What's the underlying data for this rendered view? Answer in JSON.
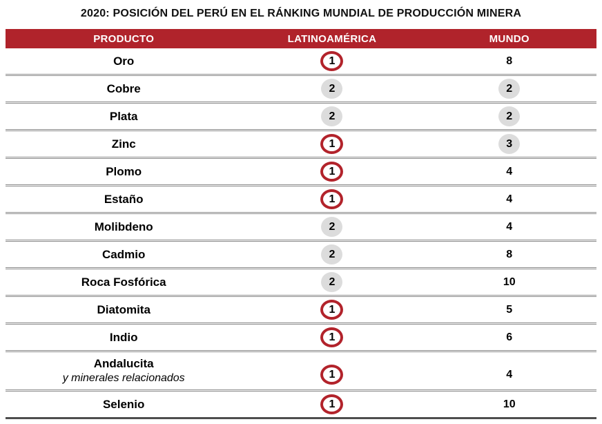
{
  "title": "2020: POSICIÓN DEL PERÚ EN EL RÁNKING MUNDIAL DE PRODUCCIÓN MINERA",
  "colors": {
    "header_bg": "#B0232B",
    "ring_red": "#B2232B",
    "circle_gray": "#DCDCDC",
    "separator_gray": "#8A8A8A",
    "bottom_border": "#4D4D4D"
  },
  "chart_data": {
    "type": "table",
    "title": "2020: POSICIÓN DEL PERÚ EN EL RÁNKING MUNDIAL DE PRODUCCIÓN MINERA",
    "columns": {
      "producto": "PRODUCTO",
      "latinoamerica": "LATINOAMÉRICA",
      "mundo": "MUNDO"
    },
    "badge_legend": {
      "ring": "red circled number (1st place)",
      "circle": "gray filled circle",
      "none": "plain number"
    },
    "rows": [
      {
        "producto": "Oro",
        "producto_sub": "",
        "latam": {
          "value": 1,
          "badge": "ring"
        },
        "mundo": {
          "value": 8,
          "badge": "none"
        }
      },
      {
        "producto": "Cobre",
        "producto_sub": "",
        "latam": {
          "value": 2,
          "badge": "circle"
        },
        "mundo": {
          "value": 2,
          "badge": "circle"
        }
      },
      {
        "producto": "Plata",
        "producto_sub": "",
        "latam": {
          "value": 2,
          "badge": "circle"
        },
        "mundo": {
          "value": 2,
          "badge": "circle"
        }
      },
      {
        "producto": "Zinc",
        "producto_sub": "",
        "latam": {
          "value": 1,
          "badge": "ring"
        },
        "mundo": {
          "value": 3,
          "badge": "circle"
        }
      },
      {
        "producto": "Plomo",
        "producto_sub": "",
        "latam": {
          "value": 1,
          "badge": "ring"
        },
        "mundo": {
          "value": 4,
          "badge": "none"
        }
      },
      {
        "producto": "Estaño",
        "producto_sub": "",
        "latam": {
          "value": 1,
          "badge": "ring"
        },
        "mundo": {
          "value": 4,
          "badge": "none"
        }
      },
      {
        "producto": "Molibdeno",
        "producto_sub": "",
        "latam": {
          "value": 2,
          "badge": "circle"
        },
        "mundo": {
          "value": 4,
          "badge": "none"
        }
      },
      {
        "producto": "Cadmio",
        "producto_sub": "",
        "latam": {
          "value": 2,
          "badge": "circle"
        },
        "mundo": {
          "value": 8,
          "badge": "none"
        }
      },
      {
        "producto": "Roca Fosfórica",
        "producto_sub": "",
        "latam": {
          "value": 2,
          "badge": "circle"
        },
        "mundo": {
          "value": 10,
          "badge": "none"
        }
      },
      {
        "producto": "Diatomita",
        "producto_sub": "",
        "latam": {
          "value": 1,
          "badge": "ring"
        },
        "mundo": {
          "value": 5,
          "badge": "none"
        }
      },
      {
        "producto": "Indio",
        "producto_sub": "",
        "latam": {
          "value": 1,
          "badge": "ring"
        },
        "mundo": {
          "value": 6,
          "badge": "none"
        }
      },
      {
        "producto": "Andalucita",
        "producto_sub": "y minerales relacionados",
        "latam": {
          "value": 1,
          "badge": "ring"
        },
        "mundo": {
          "value": 4,
          "badge": "none"
        }
      },
      {
        "producto": "Selenio",
        "producto_sub": "",
        "latam": {
          "value": 1,
          "badge": "ring"
        },
        "mundo": {
          "value": 10,
          "badge": "none"
        }
      }
    ]
  }
}
